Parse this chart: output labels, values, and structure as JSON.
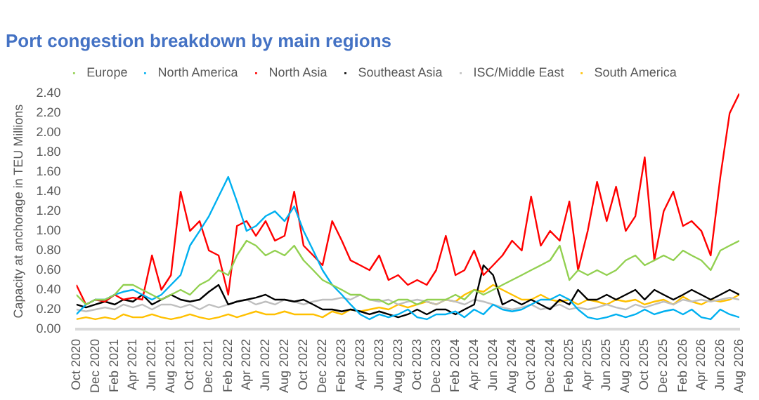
{
  "chart_data": {
    "type": "line",
    "title": "Port congestion breakdown by main regions",
    "ylabel": "Capacity at anchorage in TEU Millions",
    "grid": false,
    "legend": "top",
    "marker": "none",
    "line_style": "solid",
    "x": [
      "2020-10",
      "2020-11",
      "2020-12",
      "2021-01",
      "2021-02",
      "2021-03",
      "2021-04",
      "2021-05",
      "2021-06",
      "2021-07",
      "2021-08",
      "2021-09",
      "2021-10",
      "2021-11",
      "2021-12",
      "2022-01",
      "2022-02",
      "2022-03",
      "2022-04",
      "2022-05",
      "2022-06",
      "2022-07",
      "2022-08",
      "2022-09",
      "2022-10",
      "2022-11",
      "2022-12",
      "2023-01",
      "2023-02",
      "2023-03",
      "2023-04",
      "2023-05",
      "2023-06",
      "2023-07",
      "2023-08",
      "2023-09",
      "2023-10",
      "2023-11",
      "2023-12",
      "2024-01",
      "2024-02",
      "2024-03",
      "2024-04",
      "2024-05",
      "2024-06",
      "2024-07",
      "2024-08",
      "2024-09",
      "2024-10",
      "2024-11",
      "2024-12",
      "2025-01",
      "2025-02",
      "2025-03",
      "2025-04",
      "2025-05",
      "2025-06",
      "2025-07",
      "2025-08",
      "2025-09",
      "2025-10",
      "2025-11",
      "2025-12",
      "2026-01",
      "2026-02",
      "2026-03",
      "2026-04",
      "2026-05",
      "2026-06",
      "2026-07",
      "2026-08"
    ],
    "xlim": [
      "2020-10",
      "2026-08"
    ],
    "xticks": [
      {
        "value": "2020-10",
        "label": "Oct 2020"
      },
      {
        "value": "2020-12",
        "label": "Dec 2020"
      },
      {
        "value": "2021-02",
        "label": "Feb 2021"
      },
      {
        "value": "2021-04",
        "label": "Apr 2021"
      },
      {
        "value": "2021-06",
        "label": "Jun 2021"
      },
      {
        "value": "2021-08",
        "label": "Aug 2021"
      },
      {
        "value": "2021-10",
        "label": "Oct 2021"
      },
      {
        "value": "2021-12",
        "label": "Dec 2021"
      },
      {
        "value": "2022-02",
        "label": "Feb 2022"
      },
      {
        "value": "2022-04",
        "label": "Apr 2022"
      },
      {
        "value": "2022-06",
        "label": "Jun 2022"
      },
      {
        "value": "2022-08",
        "label": "Aug 2022"
      },
      {
        "value": "2022-10",
        "label": "Oct 2022"
      },
      {
        "value": "2022-12",
        "label": "Dec 2022"
      },
      {
        "value": "2023-02",
        "label": "Feb 2023"
      },
      {
        "value": "2023-04",
        "label": "Apr 2023"
      },
      {
        "value": "2023-06",
        "label": "Jun 2023"
      },
      {
        "value": "2023-08",
        "label": "Aug 2023"
      },
      {
        "value": "2023-10",
        "label": "Oct 2023"
      },
      {
        "value": "2023-12",
        "label": "Dec 2023"
      },
      {
        "value": "2024-02",
        "label": "Feb 2024"
      },
      {
        "value": "2024-04",
        "label": "Apr 2024"
      },
      {
        "value": "2024-06",
        "label": "Jun 2024"
      },
      {
        "value": "2024-08",
        "label": "Aug 2024"
      },
      {
        "value": "2024-10",
        "label": "Oct 2024"
      },
      {
        "value": "2024-12",
        "label": "Dec 2024"
      },
      {
        "value": "2025-02",
        "label": "Feb 2025"
      },
      {
        "value": "2025-04",
        "label": "Apr 2025"
      },
      {
        "value": "2025-06",
        "label": "Jun 2025"
      },
      {
        "value": "2025-08",
        "label": "Aug 2025"
      },
      {
        "value": "2025-10",
        "label": "Oct 2025"
      },
      {
        "value": "2025-12",
        "label": "Dec 2025"
      },
      {
        "value": "2026-02",
        "label": "Feb 2026"
      },
      {
        "value": "2026-04",
        "label": "Apr 2026"
      },
      {
        "value": "2026-06",
        "label": "Jun 2026"
      },
      {
        "value": "2026-08",
        "label": "Aug 2026"
      }
    ],
    "ylim": [
      0,
      2.4
    ],
    "yticks": [
      {
        "value": 0,
        "label": "0.00"
      },
      {
        "value": 0.2,
        "label": "0.20"
      },
      {
        "value": 0.4,
        "label": "0.40"
      },
      {
        "value": 0.6,
        "label": "0.60"
      },
      {
        "value": 0.8,
        "label": "0.80"
      },
      {
        "value": 1,
        "label": "1.00"
      },
      {
        "value": 1.2,
        "label": "1.20"
      },
      {
        "value": 1.4,
        "label": "1.40"
      },
      {
        "value": 1.6,
        "label": "1.60"
      },
      {
        "value": 1.8,
        "label": "1.80"
      },
      {
        "value": 2,
        "label": "2.00"
      },
      {
        "value": 2.2,
        "label": "2.20"
      },
      {
        "value": 2.4,
        "label": "2.40"
      }
    ],
    "series": [
      {
        "name": "Europe",
        "color": "#92d050",
        "values": [
          0.35,
          0.25,
          0.3,
          0.3,
          0.35,
          0.45,
          0.45,
          0.4,
          0.35,
          0.3,
          0.35,
          0.4,
          0.35,
          0.45,
          0.5,
          0.6,
          0.55,
          0.75,
          0.9,
          0.85,
          0.75,
          0.8,
          0.75,
          0.85,
          0.7,
          0.6,
          0.5,
          0.45,
          0.4,
          0.35,
          0.35,
          0.3,
          0.3,
          0.25,
          0.3,
          0.3,
          0.25,
          0.3,
          0.3,
          0.3,
          0.35,
          0.3,
          0.4,
          0.35,
          0.4,
          0.45,
          0.5,
          0.55,
          0.6,
          0.65,
          0.7,
          0.85,
          0.5,
          0.6,
          0.55,
          0.6,
          0.55,
          0.6,
          0.7,
          0.75,
          0.65,
          0.7,
          0.75,
          0.7,
          0.8,
          0.75,
          0.7,
          0.6,
          0.8,
          0.85,
          0.9
        ]
      },
      {
        "name": "North America",
        "color": "#00b0f0",
        "values": [
          0.15,
          0.25,
          0.3,
          0.3,
          0.35,
          0.38,
          0.4,
          0.35,
          0.3,
          0.35,
          0.45,
          0.55,
          0.85,
          1.0,
          1.15,
          1.35,
          1.55,
          1.3,
          1.0,
          1.05,
          1.15,
          1.2,
          1.1,
          1.25,
          1.0,
          0.8,
          0.6,
          0.45,
          0.35,
          0.25,
          0.15,
          0.1,
          0.15,
          0.12,
          0.15,
          0.2,
          0.12,
          0.1,
          0.15,
          0.15,
          0.18,
          0.12,
          0.2,
          0.15,
          0.25,
          0.2,
          0.18,
          0.2,
          0.25,
          0.3,
          0.3,
          0.35,
          0.3,
          0.2,
          0.12,
          0.1,
          0.12,
          0.15,
          0.12,
          0.15,
          0.2,
          0.15,
          0.18,
          0.2,
          0.15,
          0.2,
          0.12,
          0.1,
          0.2,
          0.15,
          0.12
        ]
      },
      {
        "name": "North Asia",
        "color": "#ff0000",
        "values": [
          0.45,
          0.25,
          0.3,
          0.28,
          0.35,
          0.3,
          0.32,
          0.3,
          0.75,
          0.4,
          0.55,
          1.4,
          1.0,
          1.1,
          0.8,
          0.75,
          0.35,
          1.05,
          1.1,
          0.95,
          1.1,
          0.9,
          0.95,
          1.4,
          0.85,
          0.75,
          0.65,
          1.1,
          0.9,
          0.7,
          0.65,
          0.6,
          0.75,
          0.5,
          0.55,
          0.45,
          0.5,
          0.45,
          0.6,
          0.95,
          0.55,
          0.6,
          0.8,
          0.55,
          0.65,
          0.75,
          0.9,
          0.8,
          1.35,
          0.85,
          1.0,
          0.9,
          1.3,
          0.6,
          1.0,
          1.5,
          1.1,
          1.45,
          1.0,
          1.15,
          1.75,
          0.7,
          1.2,
          1.4,
          1.05,
          1.1,
          1.0,
          0.75,
          1.55,
          2.2,
          2.4
        ]
      },
      {
        "name": "Southeast Asia",
        "color": "#000000",
        "values": [
          0.25,
          0.22,
          0.25,
          0.28,
          0.25,
          0.3,
          0.28,
          0.35,
          0.25,
          0.3,
          0.35,
          0.3,
          0.28,
          0.3,
          0.38,
          0.45,
          0.25,
          0.28,
          0.3,
          0.32,
          0.35,
          0.3,
          0.3,
          0.28,
          0.3,
          0.25,
          0.2,
          0.2,
          0.18,
          0.2,
          0.18,
          0.15,
          0.18,
          0.15,
          0.12,
          0.15,
          0.2,
          0.15,
          0.2,
          0.2,
          0.15,
          0.2,
          0.25,
          0.65,
          0.55,
          0.25,
          0.3,
          0.25,
          0.3,
          0.25,
          0.2,
          0.3,
          0.25,
          0.4,
          0.3,
          0.3,
          0.35,
          0.3,
          0.35,
          0.4,
          0.3,
          0.4,
          0.35,
          0.3,
          0.35,
          0.4,
          0.35,
          0.3,
          0.35,
          0.4,
          0.35
        ]
      },
      {
        "name": "ISC/Middle East",
        "color": "#bfbfbf",
        "values": [
          0.2,
          0.18,
          0.2,
          0.22,
          0.2,
          0.25,
          0.22,
          0.25,
          0.2,
          0.25,
          0.25,
          0.22,
          0.25,
          0.2,
          0.25,
          0.22,
          0.25,
          0.28,
          0.3,
          0.25,
          0.28,
          0.25,
          0.3,
          0.28,
          0.25,
          0.28,
          0.3,
          0.3,
          0.32,
          0.3,
          0.35,
          0.3,
          0.28,
          0.3,
          0.25,
          0.28,
          0.3,
          0.28,
          0.25,
          0.3,
          0.28,
          0.25,
          0.3,
          0.28,
          0.25,
          0.22,
          0.2,
          0.22,
          0.25,
          0.2,
          0.22,
          0.25,
          0.2,
          0.22,
          0.2,
          0.22,
          0.25,
          0.22,
          0.2,
          0.25,
          0.22,
          0.25,
          0.28,
          0.25,
          0.3,
          0.28,
          0.3,
          0.28,
          0.3,
          0.32,
          0.3
        ]
      },
      {
        "name": "South America",
        "color": "#ffc000",
        "values": [
          0.1,
          0.12,
          0.1,
          0.12,
          0.1,
          0.15,
          0.12,
          0.12,
          0.15,
          0.12,
          0.1,
          0.12,
          0.15,
          0.12,
          0.1,
          0.12,
          0.15,
          0.12,
          0.15,
          0.18,
          0.15,
          0.15,
          0.18,
          0.15,
          0.15,
          0.15,
          0.12,
          0.18,
          0.15,
          0.2,
          0.18,
          0.2,
          0.22,
          0.2,
          0.25,
          0.22,
          0.25,
          0.28,
          0.25,
          0.3,
          0.28,
          0.35,
          0.4,
          0.38,
          0.45,
          0.4,
          0.35,
          0.3,
          0.3,
          0.35,
          0.3,
          0.28,
          0.3,
          0.25,
          0.3,
          0.28,
          0.25,
          0.3,
          0.28,
          0.3,
          0.25,
          0.28,
          0.3,
          0.25,
          0.33,
          0.28,
          0.25,
          0.3,
          0.28,
          0.3,
          0.35
        ]
      }
    ]
  }
}
